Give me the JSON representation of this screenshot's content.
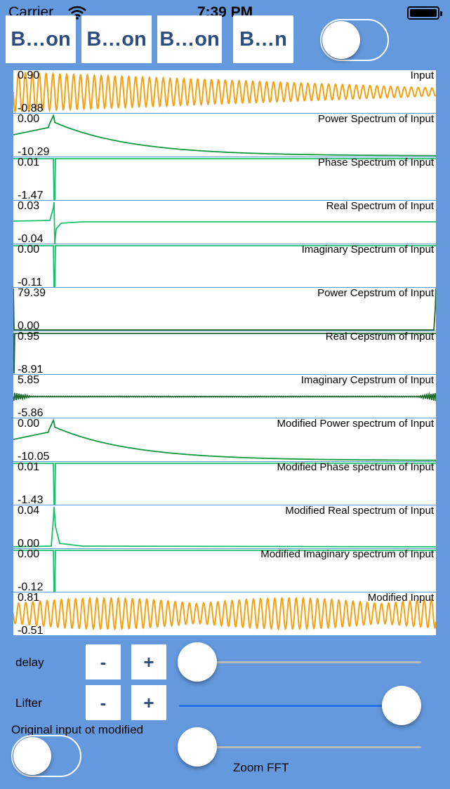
{
  "status": {
    "carrier": "Carrier",
    "time": "7:39 PM"
  },
  "buttons": [
    "B…on",
    "B…on",
    "B…on",
    "B…n"
  ],
  "top_switch_on": false,
  "plots": [
    {
      "title": "Input",
      "max": "0.90",
      "min": "-0.88",
      "kind": "sine",
      "color": "#f4a112",
      "fill": false
    },
    {
      "title": "Power Spectrum of Input",
      "max": "0.00",
      "min": "-10.29",
      "kind": "peakdecay",
      "color": "#0a9a3b",
      "fill": false
    },
    {
      "title": "Phase Spectrum of Input",
      "max": "0.01",
      "min": "-1.47",
      "kind": "spikedown",
      "color": "#18c06a",
      "fill": true
    },
    {
      "title": "Real Spectrum of Input",
      "max": "0.03",
      "min": "-0.04",
      "kind": "realspec",
      "color": "#18c06a",
      "fill": true
    },
    {
      "title": "Imaginary Spectrum of Input",
      "max": "0.00",
      "min": "-0.11",
      "kind": "spikedown",
      "color": "#18c06a",
      "fill": true
    },
    {
      "title": "Power Cepstrum of Input",
      "max": "79.39",
      "min": "0.00",
      "kind": "cepstrum",
      "color": "#1f6b2e",
      "fill": false
    },
    {
      "title": "Real Cepstrum of Input",
      "max": "0.95",
      "min": "-8.91",
      "kind": "topline",
      "color": "#1f6b2e",
      "fill": false
    },
    {
      "title": "Imaginary Cepstrum of Input",
      "max": "5.85",
      "min": "-5.86",
      "kind": "midnoise",
      "color": "#1f6b2e",
      "fill": false
    },
    {
      "title": "Modified Power spectrum of Input",
      "max": "0.00",
      "min": "-10.05",
      "kind": "peakdecay",
      "color": "#0a9a3b",
      "fill": false
    },
    {
      "title": "Modified Phase spectrum of Input",
      "max": "0.01",
      "min": "-1.43",
      "kind": "spikedown",
      "color": "#18c06a",
      "fill": true
    },
    {
      "title": "Modified Real spectrum of Input",
      "max": "0.04",
      "min": "0.00",
      "kind": "spikeup",
      "color": "#18c06a",
      "fill": true
    },
    {
      "title": "Modified Imaginary spectrum of Input",
      "max": "0.00",
      "min": "-0.12",
      "kind": "spikedown",
      "color": "#18c06a",
      "fill": true
    },
    {
      "title": "Modified Input",
      "max": "0.81",
      "min": "-0.51",
      "kind": "sine2",
      "color": "#f4a112",
      "fill": false
    }
  ],
  "controls": {
    "delay_label": "delay",
    "lifter_label": "Lifter",
    "minus": "-",
    "plus": "+",
    "original_label": "Original input ot modified",
    "zoom_label": "Zoom FFT",
    "delay_value": 0.0,
    "lifter_value": 1.0,
    "zoom_value": 0.0,
    "original_switch_on": false
  }
}
